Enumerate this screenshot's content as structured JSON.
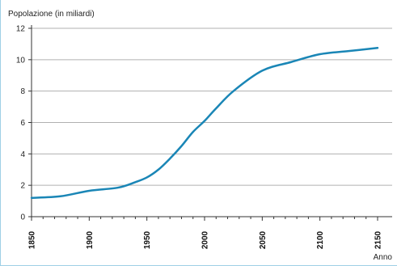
{
  "chart_data": {
    "type": "line",
    "title": "",
    "ylabel": "Popolazione (in miliardi)",
    "xlabel": "Anno",
    "xlim": [
      1850,
      2150
    ],
    "ylim": [
      0,
      12
    ],
    "x_ticks": [
      1850,
      1900,
      1950,
      2000,
      2050,
      2100,
      2150
    ],
    "y_ticks": [
      0,
      2,
      4,
      6,
      8,
      10,
      12
    ],
    "x_tick_labels": [
      "1850",
      "1900",
      "1950",
      "2000",
      "2050",
      "2100",
      "2150"
    ],
    "y_tick_labels": [
      "0",
      "2",
      "4",
      "6",
      "8",
      "10",
      "12"
    ],
    "grid": "horizontal",
    "line_color": "#1a86b6",
    "grid_color": "#b0b0b0",
    "series": [
      {
        "x": [
          1850,
          1875,
          1900,
          1925,
          1940,
          1950,
          1960,
          1970,
          1980,
          1990,
          2000,
          2010,
          2025,
          2050,
          2075,
          2100,
          2125,
          2150
        ],
        "y": [
          1.2,
          1.3,
          1.65,
          1.85,
          2.2,
          2.5,
          3.0,
          3.7,
          4.5,
          5.4,
          6.1,
          6.9,
          8.0,
          9.3,
          9.85,
          10.35,
          10.55,
          10.75
        ]
      }
    ]
  }
}
